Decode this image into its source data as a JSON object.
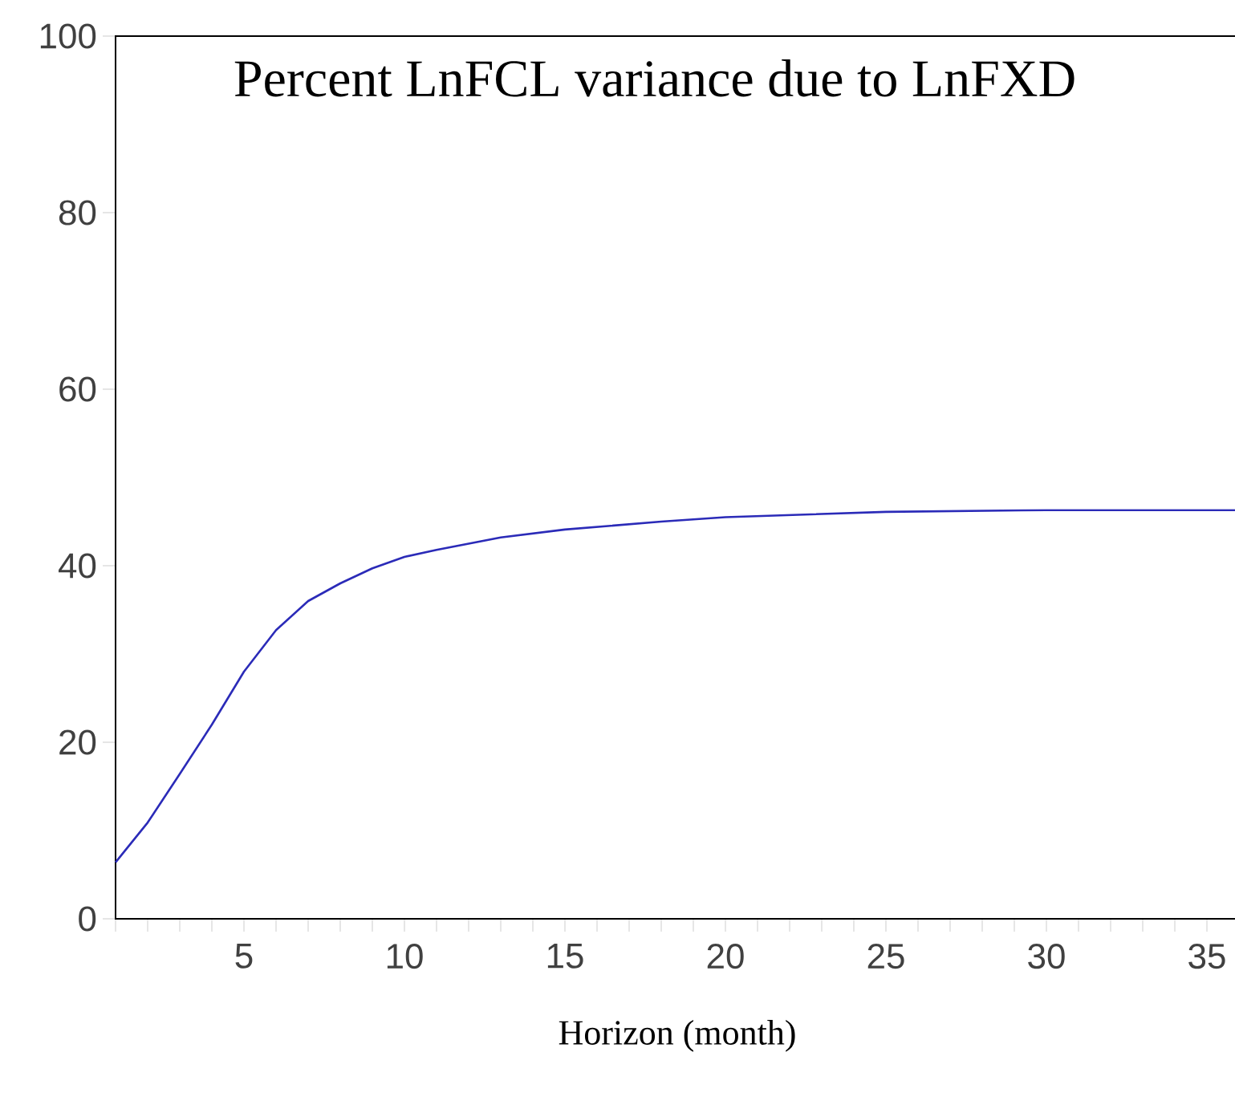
{
  "chart_data": {
    "type": "line",
    "title": "Percent LnFCL variance due to LnFXD",
    "xlabel": "Horizon (month)",
    "x": [
      1,
      2,
      3,
      4,
      5,
      6,
      7,
      8,
      9,
      10,
      11,
      12,
      13,
      15,
      18,
      20,
      25,
      30,
      36
    ],
    "series": [
      {
        "color": "#2b2bb8",
        "values": [
          6.4,
          10.9,
          16.4,
          22,
          28,
          32.7,
          36,
          38,
          39.7,
          41,
          41.8,
          42.5,
          43.2,
          44.1,
          45,
          45.5,
          46.1,
          46.3,
          46.3
        ]
      }
    ],
    "xlim": [
      1,
      36
    ],
    "ylim": [
      0,
      100
    ],
    "xticks": [
      {
        "value": 1,
        "label": null
      },
      {
        "value": 2,
        "label": null
      },
      {
        "value": 3,
        "label": null
      },
      {
        "value": 4,
        "label": null
      },
      5,
      {
        "value": 6,
        "label": null
      },
      {
        "value": 7,
        "label": null
      },
      {
        "value": 8,
        "label": null
      },
      {
        "value": 9,
        "label": null
      },
      10,
      {
        "value": 11,
        "label": null
      },
      {
        "value": 12,
        "label": null
      },
      {
        "value": 13,
        "label": null
      },
      {
        "value": 14,
        "label": null
      },
      15,
      {
        "value": 16,
        "label": null
      },
      {
        "value": 17,
        "label": null
      },
      {
        "value": 18,
        "label": null
      },
      {
        "value": 19,
        "label": null
      },
      20,
      {
        "value": 21,
        "label": null
      },
      {
        "value": 22,
        "label": null
      },
      {
        "value": 23,
        "label": null
      },
      {
        "value": 24,
        "label": null
      },
      25,
      {
        "value": 26,
        "label": null
      },
      {
        "value": 27,
        "label": null
      },
      {
        "value": 28,
        "label": null
      },
      {
        "value": 29,
        "label": null
      },
      30,
      {
        "value": 31,
        "label": null
      },
      {
        "value": 32,
        "label": null
      },
      {
        "value": 33,
        "label": null
      },
      {
        "value": 34,
        "label": null
      },
      35,
      {
        "value": 36,
        "label": null
      }
    ],
    "yticks": [
      0,
      20,
      40,
      60,
      80,
      100
    ],
    "grid": false,
    "marker": "none",
    "line_style": "solid"
  }
}
